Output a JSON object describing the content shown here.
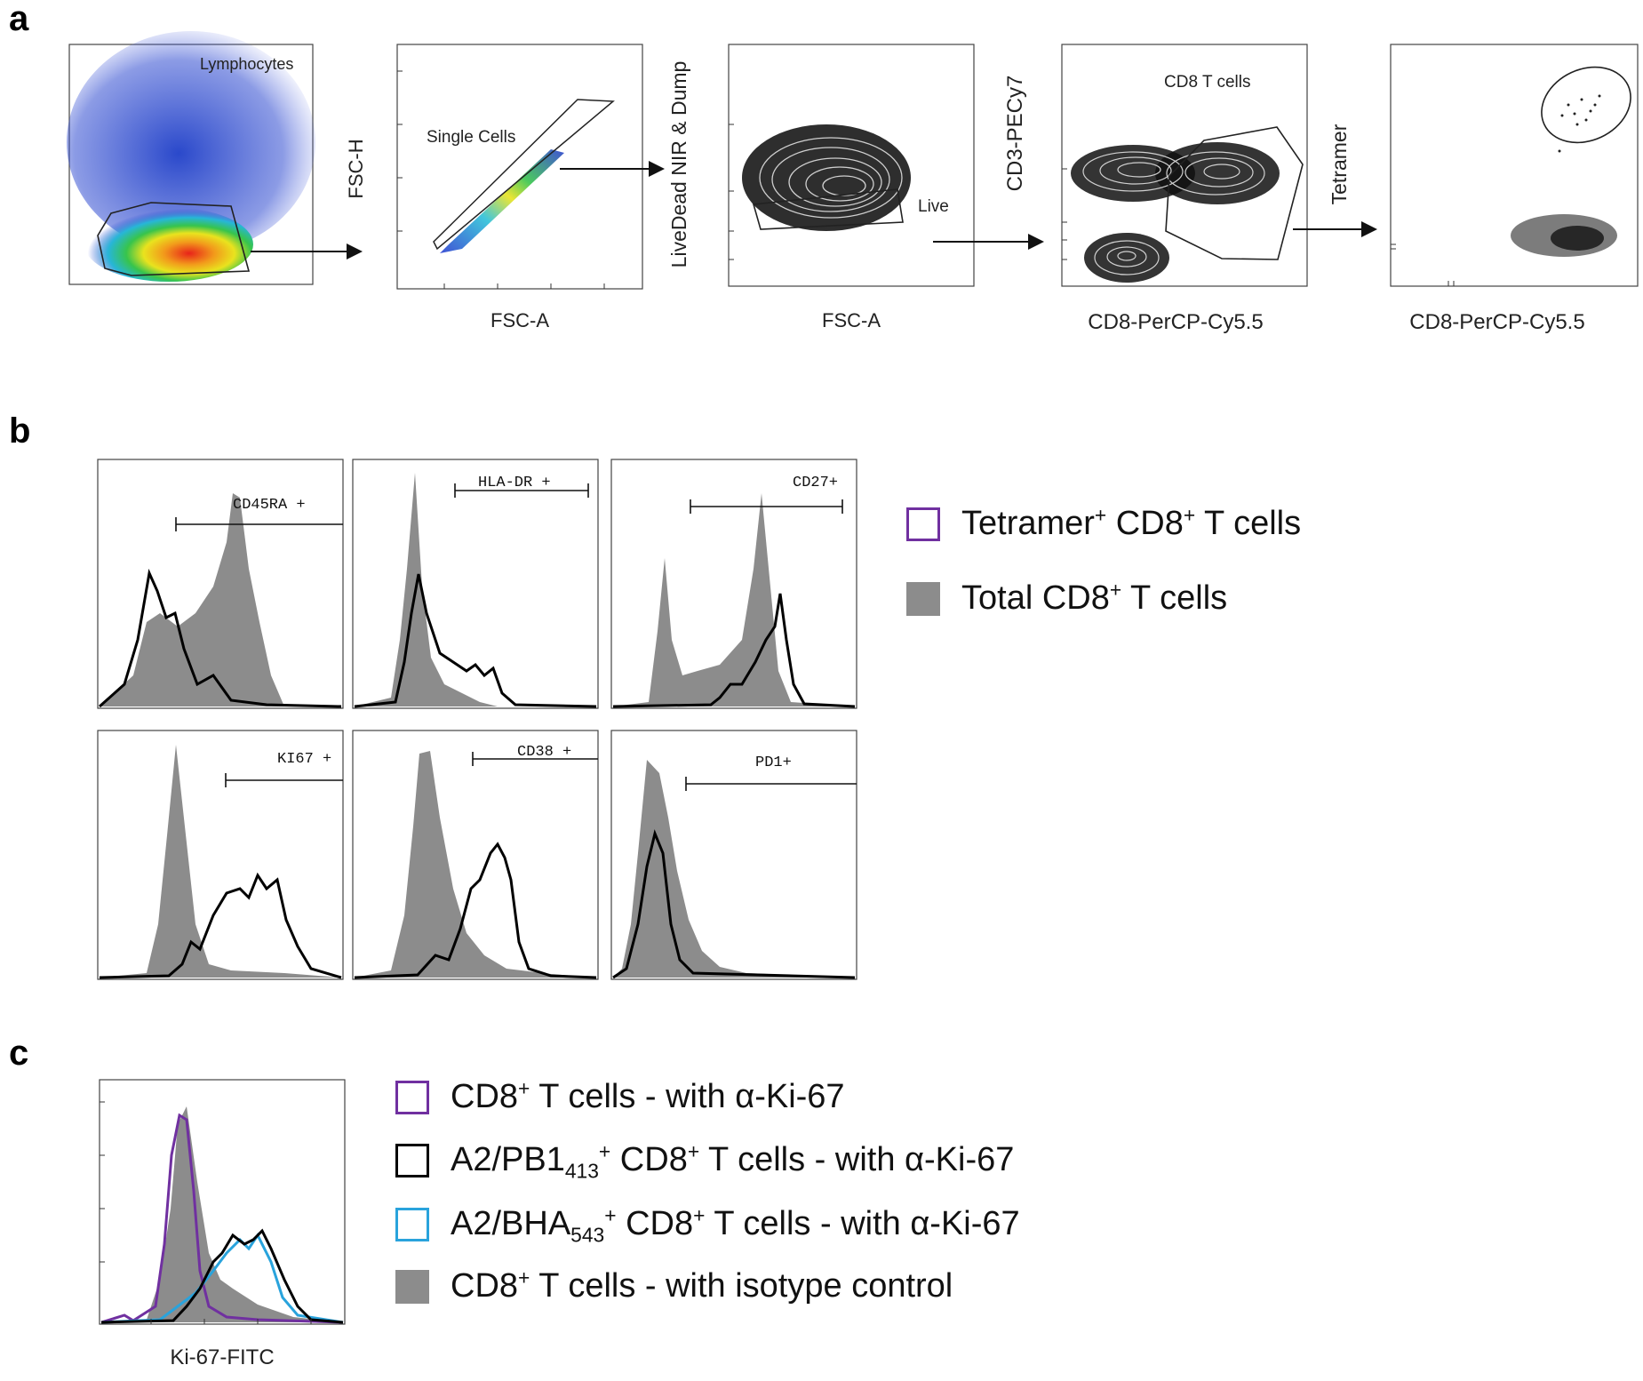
{
  "figure": {
    "panel_labels": {
      "a": "a",
      "b": "b",
      "c": "c"
    },
    "colors": {
      "purple": "#7030a0",
      "black": "#000000",
      "blue": "#29a3dc",
      "gray": "#8c8c8c"
    }
  },
  "panel_a": {
    "plots": [
      {
        "gate_label": "Lymphocytes",
        "y_label": "",
        "x_label": ""
      },
      {
        "gate_label": "Single Cells",
        "y_label": "FSC-H",
        "x_label": "FSC-A"
      },
      {
        "gate_label": "Live",
        "y_label": "LiveDead NIR & Dump",
        "x_label": "FSC-A"
      },
      {
        "gate_label": "CD8 T cells",
        "y_label": "CD3-PECy7",
        "x_label": "CD8-PerCP-Cy5.5"
      },
      {
        "gate_label": "",
        "y_label": "Tetramer",
        "x_label": "CD8-PerCP-Cy5.5"
      }
    ]
  },
  "panel_b": {
    "histograms": [
      {
        "marker": "CD45RA +"
      },
      {
        "marker": "HLA-DR +"
      },
      {
        "marker": "CD27+"
      },
      {
        "marker": "KI67 +"
      },
      {
        "marker": "CD38 +"
      },
      {
        "marker": "PD1+"
      }
    ],
    "legend": {
      "tetramer": {
        "main": "Tetramer",
        "sup": "+",
        "rest": " CD8",
        "sup2": "+",
        "tail": " T cells"
      },
      "total": {
        "main": "Total CD8",
        "sup": "+",
        "tail": " T cells"
      }
    }
  },
  "panel_c": {
    "x_label": "Ki-67-FITC",
    "legend": [
      {
        "pre": "CD8",
        "sup": "+",
        "post": " T cells - with α-Ki-67"
      },
      {
        "pre": "A2/PB1",
        "sub": "413",
        "sup": "+",
        "post": " CD8",
        "sup2": "+",
        "post2": " T cells - with α-Ki-67"
      },
      {
        "pre": "A2/BHA",
        "sub": "543",
        "sup": "+",
        "post": " CD8",
        "sup2": "+",
        "post2": " T cells - with α-Ki-67"
      },
      {
        "pre": "CD8",
        "sup": "+",
        "post": " T cells - with isotype control"
      }
    ]
  }
}
